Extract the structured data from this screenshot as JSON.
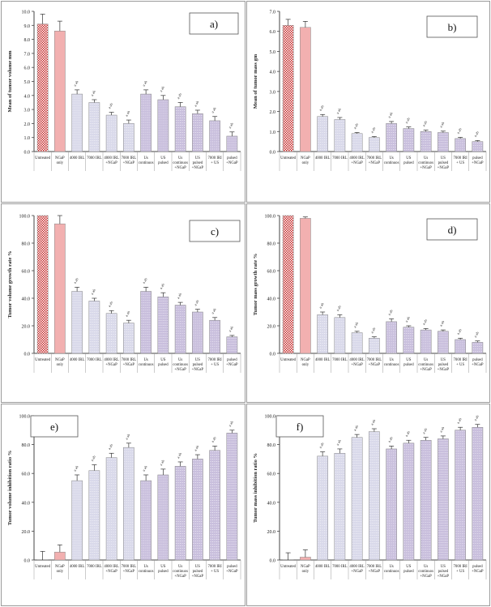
{
  "colors": {
    "untreated": "#d94848",
    "ngap": "#f2b0b0",
    "laser": "#d9d9ea",
    "us": "#c9bfdd",
    "axis": "#333333"
  },
  "chart_data": [
    {
      "panel": "a)",
      "type": "bar",
      "ylabel": "Mean of tumor volume  mm",
      "ylim": [
        0,
        10
      ],
      "yticks": [
        "0.0",
        "1.0",
        "2.0",
        "3.0",
        "4.0",
        "5.0",
        "6.0",
        "7.0",
        "8.0",
        "9.0",
        "10.0"
      ],
      "categories": [
        "Untreated",
        "NGaP only",
        "4000 IRL",
        "7000 IRL",
        "4000 IRL +NGaP",
        "7000 IRL +NGaP",
        "Us continuos",
        "US pulsed",
        "Us continuos +NGaP",
        "US pulsed +NGaP",
        "7000 IRI + US",
        "pulsed +NGaP"
      ],
      "values": [
        9.1,
        8.6,
        4.1,
        3.5,
        2.6,
        2.0,
        4.1,
        3.7,
        3.2,
        2.7,
        2.2,
        1.1
      ],
      "errors": [
        0.7,
        0.7,
        0.3,
        0.2,
        0.2,
        0.25,
        0.3,
        0.3,
        0.3,
        0.25,
        0.3,
        0.3
      ],
      "sig_labels": [
        "",
        "",
        "a ab",
        "a ab",
        "a ab",
        "a ab",
        "a ab",
        "a ab",
        "a ab",
        "a ab",
        "a ab",
        "a ab"
      ]
    },
    {
      "panel": "b)",
      "type": "bar",
      "ylabel": "Mean of tumor mass  gm",
      "ylim": [
        0,
        7
      ],
      "yticks": [
        "0.0",
        "1.0",
        "2.0",
        "3.0",
        "4.0",
        "5.0",
        "6.0",
        "7.0"
      ],
      "categories": [
        "Untreated",
        "NGaP only",
        "4000 IRL",
        "7000 IRL",
        "4000 IRL +NGaP",
        "7000 IRL +NGaP",
        "Us continuos",
        "US pulsed",
        "Us continuos +NGaP",
        "US pulsed +NGaP",
        "7000 IRI + US",
        "pulsed +NGaP"
      ],
      "values": [
        6.3,
        6.2,
        1.75,
        1.6,
        0.9,
        0.7,
        1.4,
        1.15,
        1.0,
        0.95,
        0.65,
        0.5
      ],
      "errors": [
        0.3,
        0.3,
        0.1,
        0.1,
        0.05,
        0.05,
        0.1,
        0.08,
        0.07,
        0.07,
        0.06,
        0.05
      ],
      "sig_labels": [
        "",
        "",
        "a ab",
        "a ab",
        "a ab",
        "a ab",
        "a ab",
        "a ab",
        "a ab",
        "a ab",
        "a ab",
        "a ab"
      ]
    },
    {
      "panel": "c)",
      "type": "bar",
      "ylabel": "Tumor volume growth rate  %",
      "ylim": [
        0,
        100
      ],
      "yticks": [
        "0.0",
        "20.0",
        "40.0",
        "60.0",
        "80.0",
        "100.0"
      ],
      "categories": [
        "Untreated",
        "NGaP only",
        "4000 IRL",
        "7000 IRL",
        "4000 IRL +NGaP",
        "7000 IRL +NGaP",
        "Us continuos",
        "US pulsed",
        "Us continuos +NGaP",
        "US pulsed +NGaP",
        "7000 IRI + US",
        "pulsed +NGaP"
      ],
      "values": [
        100,
        94,
        45,
        38,
        29,
        22,
        45,
        41,
        35,
        30,
        24,
        12
      ],
      "errors": [
        0,
        6,
        3,
        2,
        2,
        2,
        3,
        3,
        2,
        2,
        2,
        1
      ],
      "sig_labels": [
        "",
        "",
        "a ab",
        "a ab",
        "a ab",
        "a ab",
        "a ab",
        "a ab",
        "a ab",
        "a ab",
        "a ab",
        "a ab"
      ]
    },
    {
      "panel": "d)",
      "type": "bar",
      "ylabel": "Tumor mass growth rate  %",
      "ylim": [
        0,
        100
      ],
      "yticks": [
        "0.0",
        "20.0",
        "40.0",
        "60.0",
        "80.0",
        "100.0"
      ],
      "categories": [
        "Untreated",
        "NGaP only",
        "4000 IRL",
        "7000 IRL",
        "4000 IRL +NGaP",
        "7000 IRL +NGaP",
        "Us continuos",
        "US pulsed",
        "Us continuos +NGaP",
        "US pulsed +NGaP",
        "7000 IRI + US",
        "pulsed +NGaP"
      ],
      "values": [
        100,
        98,
        28,
        26,
        15,
        11,
        23,
        19,
        17,
        16,
        10,
        8
      ],
      "errors": [
        0,
        1,
        2,
        2,
        1,
        1,
        2,
        1,
        1,
        1,
        1,
        1
      ],
      "sig_labels": [
        "",
        "",
        "a ab",
        "a ab",
        "a ab",
        "a ab",
        "a ab",
        "a ab",
        "a ab",
        "a ab",
        "a ab",
        "a ab"
      ]
    },
    {
      "panel": "e)",
      "type": "bar",
      "ylabel": "Tumor volume inhibition ratio  %",
      "ylim": [
        0,
        100
      ],
      "yticks": [
        "0.0",
        "20.0",
        "40.0",
        "60.0",
        "80.0",
        "100.0"
      ],
      "categories": [
        "Untreated",
        "NGaP only",
        "4000 IRL",
        "7000 IRL",
        "4000 IRL +NGaP",
        "7000 IRL +NGaP",
        "Us continuos",
        "US pulsed",
        "Us continuos +NGaP",
        "US pulsed +NGaP",
        "7000 IRI + US",
        "pulsed +NGaP"
      ],
      "values": [
        0,
        5.5,
        55,
        62,
        71,
        78,
        55,
        59,
        65,
        70,
        76,
        88
      ],
      "errors": [
        6,
        5,
        4,
        4,
        3,
        3,
        4,
        4,
        3,
        3,
        3,
        2
      ],
      "sig_labels": [
        "",
        "",
        "a ab",
        "a ab",
        "a ab",
        "a ab",
        "a ab",
        "a ab",
        "a ab",
        "a ab",
        "a ab",
        "a ab"
      ]
    },
    {
      "panel": "f)",
      "type": "bar",
      "ylabel": "Tumor mass inhibition ratio  %",
      "ylim": [
        0,
        100
      ],
      "yticks": [
        "0.0",
        "20.0",
        "40.0",
        "60.0",
        "80.0",
        "100.0"
      ],
      "categories": [
        "Untreated",
        "NGaP only",
        "4000 IRL",
        "7000 IRL",
        "4000 IRL +NGaP",
        "7000 IRL +NGaP",
        "Us continuos",
        "US pulsed",
        "Us continuos +NGaP",
        "US pulsed +NGaP",
        "7000 IRI + US",
        "pulsed +NGaP"
      ],
      "values": [
        0,
        2,
        72,
        74,
        85,
        89,
        77,
        81,
        83,
        84,
        90,
        92
      ],
      "errors": [
        5,
        5,
        3,
        3,
        2,
        2,
        2,
        2,
        2,
        2,
        2,
        2
      ],
      "sig_labels": [
        "",
        "",
        "a ab",
        "a ab",
        "a ab",
        "a ab",
        "a ab",
        "a ab",
        "a ab",
        "a ab",
        "a ab",
        "a ab"
      ]
    }
  ]
}
